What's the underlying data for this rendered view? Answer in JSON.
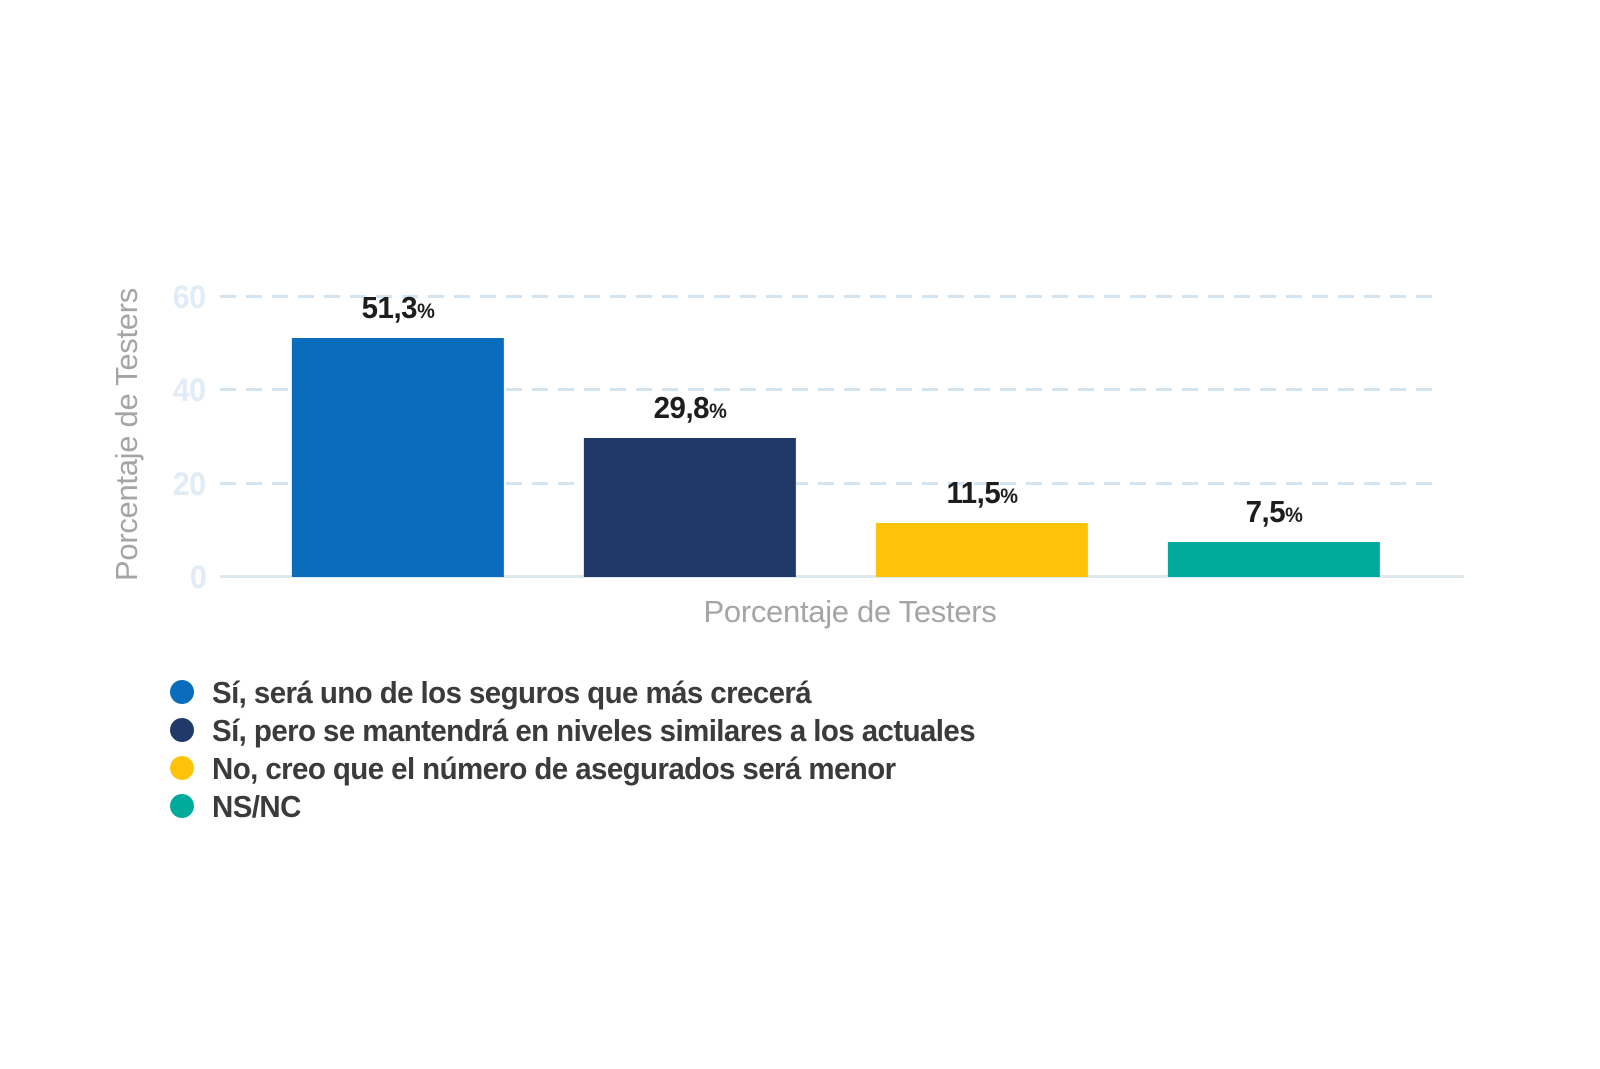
{
  "chart_data": {
    "type": "bar",
    "title": "",
    "xlabel": "Porcentaje de Testers",
    "ylabel": "Porcentaje de Testers",
    "ylim": [
      0,
      60
    ],
    "yticks": [
      0,
      20,
      40,
      60
    ],
    "grid": "horizontal-dashed",
    "legend_position": "bottom-left",
    "categories": [
      "Sí, será uno de los seguros que más crecerá",
      "Sí, pero se mantendrá en niveles similares a los actuales",
      "No, creo que el número de asegurados será menor",
      "NS/NC"
    ],
    "values": [
      51.3,
      29.8,
      11.5,
      7.5
    ],
    "value_labels": [
      "51,3",
      "29,8",
      "11,5",
      "7,5"
    ],
    "value_suffix": "%",
    "colors": [
      "#0a6cbd",
      "#1f3a68",
      "#ffc40a",
      "#00ab9c"
    ],
    "colors_semantic": {
      "blue": "#0a6cbd",
      "navy": "#1f3a68",
      "yellow": "#ffc40a",
      "teal": "#00ab9c",
      "gridline": "#d4e5f1",
      "axis_tick_text": "#e0ecf7",
      "axis_title_text": "#a5a5a5",
      "value_label_text": "#1d1d1d",
      "legend_text": "#3b3b3b"
    }
  }
}
